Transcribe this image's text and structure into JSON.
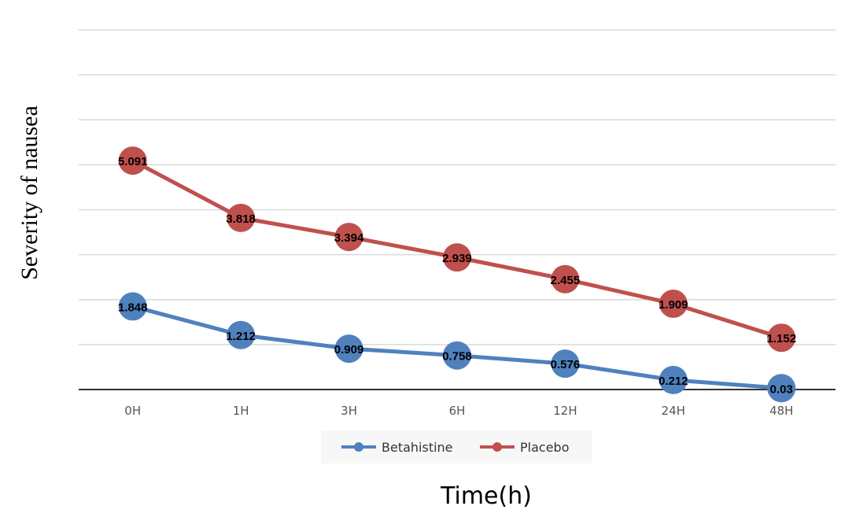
{
  "chart_data": {
    "type": "line",
    "categories": [
      "0H",
      "1H",
      "3H",
      "6H",
      "12H",
      "24H",
      "48H"
    ],
    "series": [
      {
        "name": "Betahistine",
        "color": "#4f81bd",
        "values": [
          1.848,
          1.212,
          0.909,
          0.758,
          0.576,
          0.212,
          0.03
        ]
      },
      {
        "name": "Placebo",
        "color": "#c0504d",
        "values": [
          5.091,
          3.818,
          3.394,
          2.939,
          2.455,
          1.909,
          1.152
        ]
      }
    ],
    "title": "",
    "xlabel": "Time(h)",
    "ylabel": "Severity of nausea",
    "ylim": [
      0,
      8
    ],
    "y_gridlines": [
      1,
      2,
      3,
      4,
      5,
      6,
      7,
      8
    ],
    "grid": true,
    "y_tick_labels_shown": false,
    "legend_position": "bottom",
    "data_labels": true
  }
}
